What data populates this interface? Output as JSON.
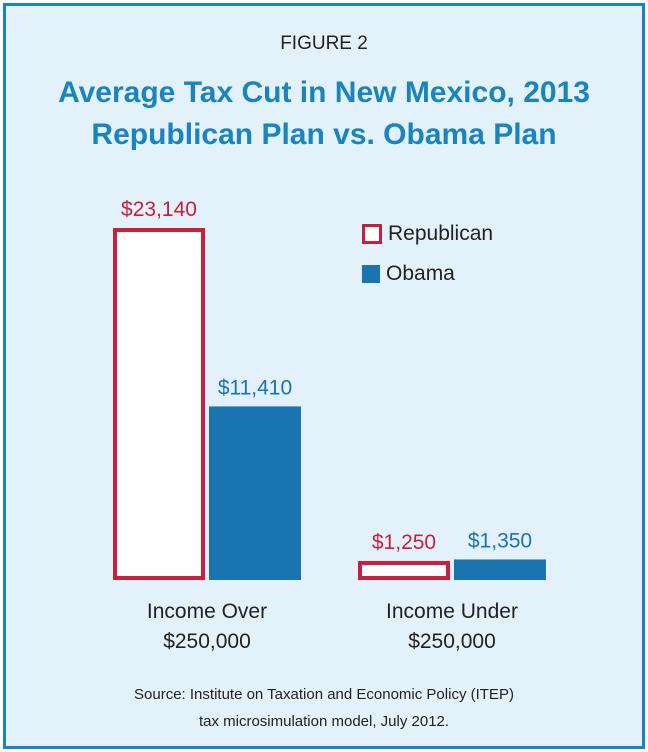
{
  "figure_label": "FIGURE 2",
  "title_line1": "Average Tax Cut in New Mexico, 2013",
  "title_line2": "Republican Plan vs. Obama Plan",
  "source_line1": "Source: Institute on Taxation and Economic Policy (ITEP)",
  "source_line2": "tax microsimulation model, July 2012.",
  "colors": {
    "republican": "#c8203c",
    "obama": "#1a74b0",
    "title": "#1a84bd",
    "background": "#e3f1fa"
  },
  "chart_data": {
    "type": "bar",
    "categories": [
      "Income Over $250,000",
      "Income Under $250,000"
    ],
    "category_lines": [
      [
        "Income Over",
        "$250,000"
      ],
      [
        "Income Under",
        "$250,000"
      ]
    ],
    "series": [
      {
        "name": "Republican",
        "values": [
          23140,
          1250
        ],
        "labels": [
          "$23,140",
          "$1,250"
        ]
      },
      {
        "name": "Obama",
        "values": [
          11410,
          1350
        ],
        "labels": [
          "$11,410",
          "$1,350"
        ]
      }
    ],
    "legend_position": "top-right",
    "ylim": [
      0,
      23140
    ],
    "grid": false
  }
}
